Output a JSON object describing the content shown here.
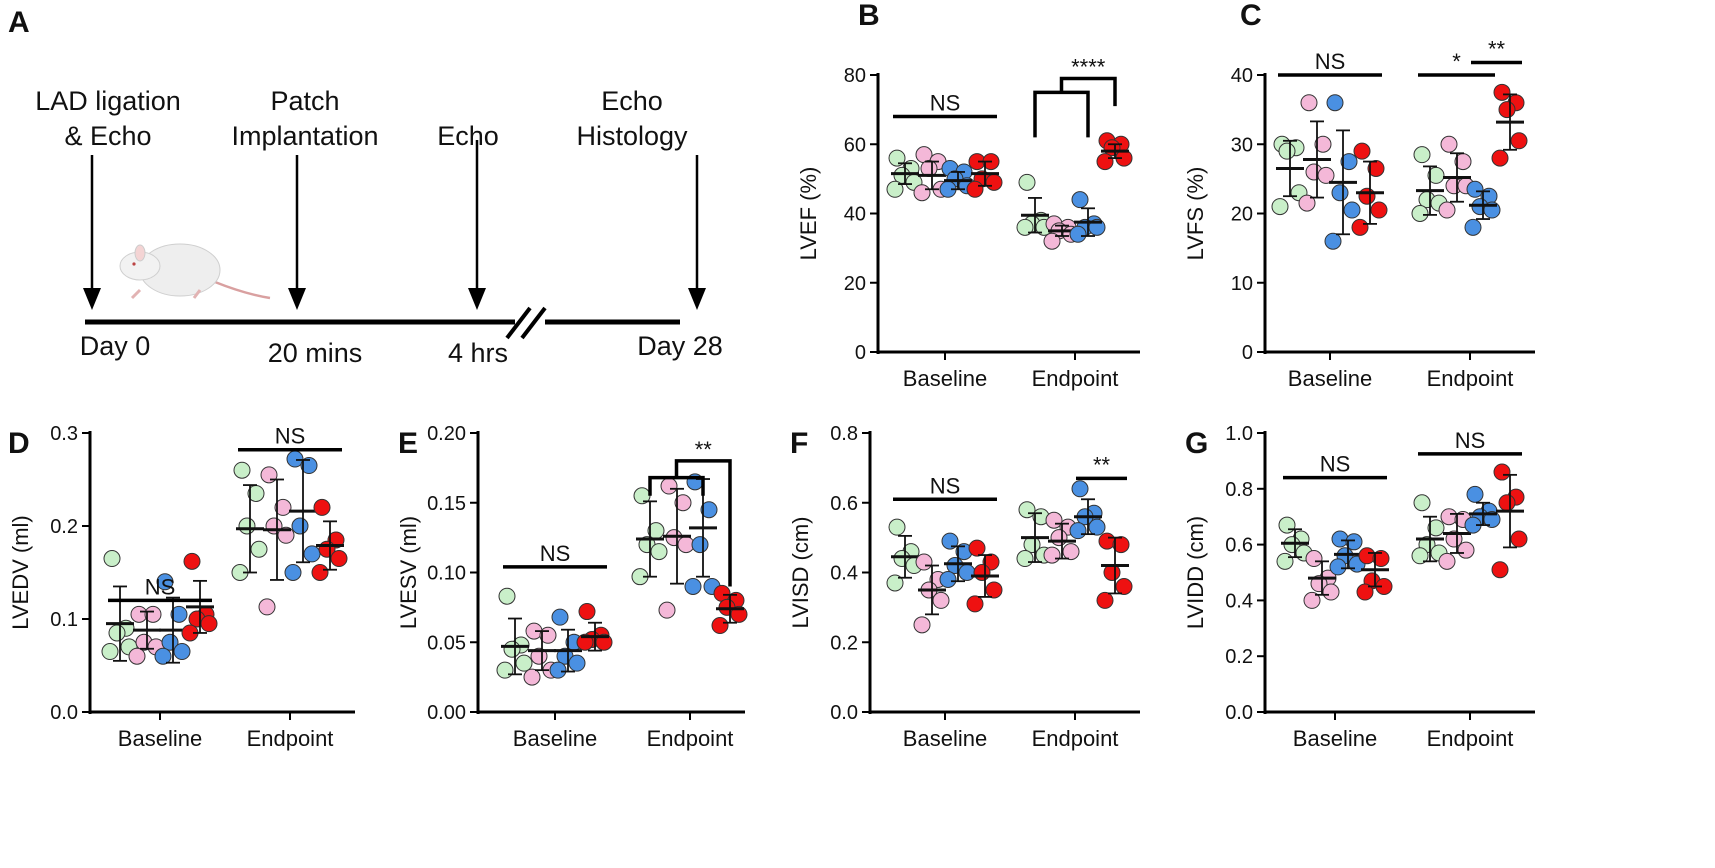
{
  "colors": {
    "green": "#c9efc9",
    "pink": "#f4b8d8",
    "blue": "#4a90e2",
    "red": "#ee1111",
    "axis": "#000000"
  },
  "panel_a": {
    "letter": "A",
    "events": [
      {
        "lines": [
          "LAD ligation",
          "& Echo"
        ],
        "time": "Day 0"
      },
      {
        "lines": [
          "Patch",
          "Implantation"
        ],
        "time": "20 mins"
      },
      {
        "lines": [
          "Echo"
        ],
        "time": "4 hrs"
      },
      {
        "lines": [
          "Echo",
          "Histology"
        ],
        "time": "Day 28"
      }
    ],
    "icon": "mouse-illustration"
  },
  "chart_data": [
    {
      "letter": "B",
      "type": "scatter",
      "ylabel": "LVEF (%)",
      "ylim": [
        0,
        80
      ],
      "ticks": [
        "0",
        "20",
        "40",
        "60",
        "80"
      ],
      "categories": [
        "Baseline",
        "Endpoint"
      ],
      "groups": [
        [
          {
            "values": [
              56,
              53,
              51,
              49,
              47
            ],
            "mean": 51.5,
            "sd": 3
          },
          {
            "values": [
              57,
              55,
              53,
              47,
              46
            ],
            "mean": 51,
            "sd": 4
          },
          {
            "values": [
              53,
              52,
              50,
              48,
              47
            ],
            "mean": 49.5,
            "sd": 2.5
          },
          {
            "values": [
              55,
              55,
              50,
              49,
              47
            ],
            "mean": 51.5,
            "sd": 3.5
          }
        ],
        [
          {
            "values": [
              49,
              38,
              37,
              36,
              36
            ],
            "mean": 39.5,
            "sd": 5
          },
          {
            "values": [
              37,
              36,
              35,
              34,
              32
            ],
            "mean": 35,
            "sd": 1.5
          },
          {
            "values": [
              44,
              37,
              36,
              36,
              34
            ],
            "mean": 37.5,
            "sd": 4
          },
          {
            "values": [
              61,
              60,
              59,
              56,
              55
            ],
            "mean": 58,
            "sd": 2
          }
        ]
      ],
      "annotations": [
        {
          "kind": "line",
          "cat": 0,
          "from": 0,
          "to": 3,
          "y": 68,
          "text": "NS"
        },
        {
          "kind": "nested",
          "cat": 1,
          "from": 0,
          "to": 2,
          "low": 62,
          "y": 75,
          "to2": 3,
          "low2": 71,
          "y2": 79,
          "text": "****"
        }
      ]
    },
    {
      "letter": "C",
      "type": "scatter",
      "ylabel": "LVFS (%)",
      "ylim": [
        0,
        40
      ],
      "ticks": [
        "0",
        "10",
        "20",
        "30",
        "40"
      ],
      "categories": [
        "Baseline",
        "Endpoint"
      ],
      "groups": [
        [
          {
            "values": [
              30,
              29.5,
              29,
              23,
              21
            ],
            "mean": 26.5,
            "sd": 4
          },
          {
            "values": [
              36,
              30,
              26,
              25.5,
              21.5
            ],
            "mean": 27.8,
            "sd": 5.5
          },
          {
            "values": [
              36,
              27.5,
              23,
              20.5,
              16
            ],
            "mean": 24.5,
            "sd": 7.5
          },
          {
            "values": [
              29,
              26.5,
              22.5,
              20.5,
              18
            ],
            "mean": 23,
            "sd": 4.5
          }
        ],
        [
          {
            "values": [
              28.5,
              25.5,
              22,
              21.5,
              20
            ],
            "mean": 23.3,
            "sd": 3.5
          },
          {
            "values": [
              30,
              27.5,
              24,
              24,
              20.5
            ],
            "mean": 25.2,
            "sd": 3.5
          },
          {
            "values": [
              23.5,
              22.5,
              21,
              20.5,
              18
            ],
            "mean": 21.2,
            "sd": 2
          },
          {
            "values": [
              37.5,
              36,
              35,
              30.5,
              28
            ],
            "mean": 33.2,
            "sd": 4
          }
        ]
      ],
      "annotations": [
        {
          "kind": "line",
          "cat": 0,
          "from": 0,
          "to": 3,
          "y": 40,
          "text": "NS"
        },
        {
          "kind": "line",
          "cat": 1,
          "from": 0,
          "to": 2,
          "y": 40,
          "text": "*"
        },
        {
          "kind": "line",
          "cat": 1,
          "from": 2,
          "to": 3,
          "y": 41.8,
          "text": "**"
        }
      ]
    },
    {
      "letter": "D",
      "type": "scatter",
      "ylabel": "LVEDV (ml)",
      "ylim": [
        0,
        0.3
      ],
      "ticks": [
        "0.0",
        "0.1",
        "0.2",
        "0.3"
      ],
      "categories": [
        "Baseline",
        "Endpoint"
      ],
      "groups": [
        [
          {
            "values": [
              0.165,
              0.09,
              0.085,
              0.07,
              0.065
            ],
            "mean": 0.095,
            "sd": 0.04
          },
          {
            "values": [
              0.105,
              0.105,
              0.075,
              0.07,
              0.06
            ],
            "mean": 0.088,
            "sd": 0.02
          },
          {
            "values": [
              0.14,
              0.105,
              0.075,
              0.065,
              0.06
            ],
            "mean": 0.088,
            "sd": 0.035
          },
          {
            "values": [
              0.162,
              0.105,
              0.1,
              0.095,
              0.085
            ],
            "mean": 0.113,
            "sd": 0.028
          }
        ],
        [
          {
            "values": [
              0.26,
              0.235,
              0.2,
              0.175,
              0.15
            ],
            "mean": 0.197,
            "sd": 0.047
          },
          {
            "values": [
              0.255,
              0.22,
              0.2,
              0.19,
              0.113
            ],
            "mean": 0.196,
            "sd": 0.054
          },
          {
            "values": [
              0.272,
              0.265,
              0.2,
              0.17,
              0.15
            ],
            "mean": 0.216,
            "sd": 0.055
          },
          {
            "values": [
              0.22,
              0.185,
              0.175,
              0.165,
              0.15
            ],
            "mean": 0.179,
            "sd": 0.026
          }
        ]
      ],
      "annotations": [
        {
          "kind": "line",
          "cat": 0,
          "from": 0,
          "to": 3,
          "y": 0.12,
          "text": "NS"
        },
        {
          "kind": "line",
          "cat": 1,
          "from": 0,
          "to": 3,
          "y": 0.282,
          "text": "NS"
        }
      ]
    },
    {
      "letter": "E",
      "type": "scatter",
      "ylabel": "LVESV (ml)",
      "ylim": [
        0,
        0.2
      ],
      "ticks": [
        "0.00",
        "0.05",
        "0.10",
        "0.15",
        "0.20"
      ],
      "categories": [
        "Baseline",
        "Endpoint"
      ],
      "groups": [
        [
          {
            "values": [
              0.083,
              0.048,
              0.045,
              0.035,
              0.03
            ],
            "mean": 0.047,
            "sd": 0.02
          },
          {
            "values": [
              0.058,
              0.055,
              0.04,
              0.03,
              0.025
            ],
            "mean": 0.044,
            "sd": 0.014
          },
          {
            "values": [
              0.068,
              0.05,
              0.04,
              0.035,
              0.03
            ],
            "mean": 0.044,
            "sd": 0.015
          },
          {
            "values": [
              0.072,
              0.055,
              0.052,
              0.05,
              0.05
            ],
            "mean": 0.054,
            "sd": 0.01
          }
        ],
        [
          {
            "values": [
              0.155,
              0.13,
              0.12,
              0.115,
              0.097
            ],
            "mean": 0.124,
            "sd": 0.027
          },
          {
            "values": [
              0.162,
              0.15,
              0.125,
              0.12,
              0.073
            ],
            "mean": 0.126,
            "sd": 0.034
          },
          {
            "values": [
              0.165,
              0.145,
              0.12,
              0.09,
              0.09
            ],
            "mean": 0.132,
            "sd": 0.035
          },
          {
            "values": [
              0.085,
              0.08,
              0.075,
              0.07,
              0.062
            ],
            "mean": 0.074,
            "sd": 0.01
          }
        ]
      ],
      "annotations": [
        {
          "kind": "line",
          "cat": 0,
          "from": 0,
          "to": 3,
          "y": 0.104,
          "text": "NS"
        },
        {
          "kind": "nested",
          "cat": 1,
          "from": 0,
          "to": 2,
          "low": 0.155,
          "y": 0.168,
          "to2": 3,
          "low2": 0.09,
          "y2": 0.18,
          "text": "**"
        }
      ]
    },
    {
      "letter": "F",
      "type": "scatter",
      "ylabel": "LVISD (cm)",
      "ylim": [
        0,
        0.8
      ],
      "ticks": [
        "0.0",
        "0.2",
        "0.4",
        "0.6",
        "0.8"
      ],
      "categories": [
        "Baseline",
        "Endpoint"
      ],
      "groups": [
        [
          {
            "values": [
              0.53,
              0.46,
              0.44,
              0.42,
              0.37
            ],
            "mean": 0.445,
            "sd": 0.06
          },
          {
            "values": [
              0.43,
              0.38,
              0.35,
              0.32,
              0.25
            ],
            "mean": 0.35,
            "sd": 0.07
          },
          {
            "values": [
              0.49,
              0.46,
              0.42,
              0.4,
              0.38
            ],
            "mean": 0.425,
            "sd": 0.05
          },
          {
            "values": [
              0.47,
              0.43,
              0.4,
              0.35,
              0.31
            ],
            "mean": 0.39,
            "sd": 0.06
          }
        ],
        [
          {
            "values": [
              0.58,
              0.56,
              0.48,
              0.45,
              0.44
            ],
            "mean": 0.5,
            "sd": 0.07
          },
          {
            "values": [
              0.55,
              0.53,
              0.5,
              0.46,
              0.45
            ],
            "mean": 0.49,
            "sd": 0.05
          },
          {
            "values": [
              0.64,
              0.57,
              0.56,
              0.53,
              0.52
            ],
            "mean": 0.56,
            "sd": 0.05
          },
          {
            "values": [
              0.49,
              0.48,
              0.4,
              0.36,
              0.32
            ],
            "mean": 0.42,
            "sd": 0.08
          }
        ]
      ],
      "annotations": [
        {
          "kind": "line",
          "cat": 0,
          "from": 0,
          "to": 3,
          "y": 0.61,
          "text": "NS"
        },
        {
          "kind": "line",
          "cat": 1,
          "from": 2,
          "to": 3,
          "y": 0.67,
          "text": "**"
        }
      ]
    },
    {
      "letter": "G",
      "type": "scatter",
      "ylabel": "LVIDD (cm)",
      "ylim": [
        0,
        1
      ],
      "ticks": [
        "0.0",
        "0.2",
        "0.4",
        "0.6",
        "0.8",
        "1.0"
      ],
      "categories": [
        "Baseline",
        "Endpoint"
      ],
      "groups": [
        [
          {
            "values": [
              0.67,
              0.62,
              0.6,
              0.57,
              0.54
            ],
            "mean": 0.605,
            "sd": 0.05
          },
          {
            "values": [
              0.55,
              0.48,
              0.46,
              0.43,
              0.4
            ],
            "mean": 0.48,
            "sd": 0.06
          },
          {
            "values": [
              0.62,
              0.61,
              0.56,
              0.53,
              0.52
            ],
            "mean": 0.565,
            "sd": 0.05
          },
          {
            "values": [
              0.56,
              0.55,
              0.47,
              0.45,
              0.43
            ],
            "mean": 0.51,
            "sd": 0.06
          }
        ],
        [
          {
            "values": [
              0.75,
              0.66,
              0.6,
              0.57,
              0.56
            ],
            "mean": 0.62,
            "sd": 0.08
          },
          {
            "values": [
              0.7,
              0.69,
              0.62,
              0.58,
              0.54
            ],
            "mean": 0.64,
            "sd": 0.07
          },
          {
            "values": [
              0.78,
              0.72,
              0.7,
              0.69,
              0.67
            ],
            "mean": 0.71,
            "sd": 0.04
          },
          {
            "values": [
              0.86,
              0.77,
              0.75,
              0.62,
              0.51
            ],
            "mean": 0.72,
            "sd": 0.13
          }
        ]
      ],
      "annotations": [
        {
          "kind": "line",
          "cat": 0,
          "from": 0,
          "to": 3,
          "y": 0.84,
          "text": "NS"
        },
        {
          "kind": "line",
          "cat": 1,
          "from": 0,
          "to": 3,
          "y": 0.925,
          "text": "NS"
        }
      ]
    }
  ]
}
